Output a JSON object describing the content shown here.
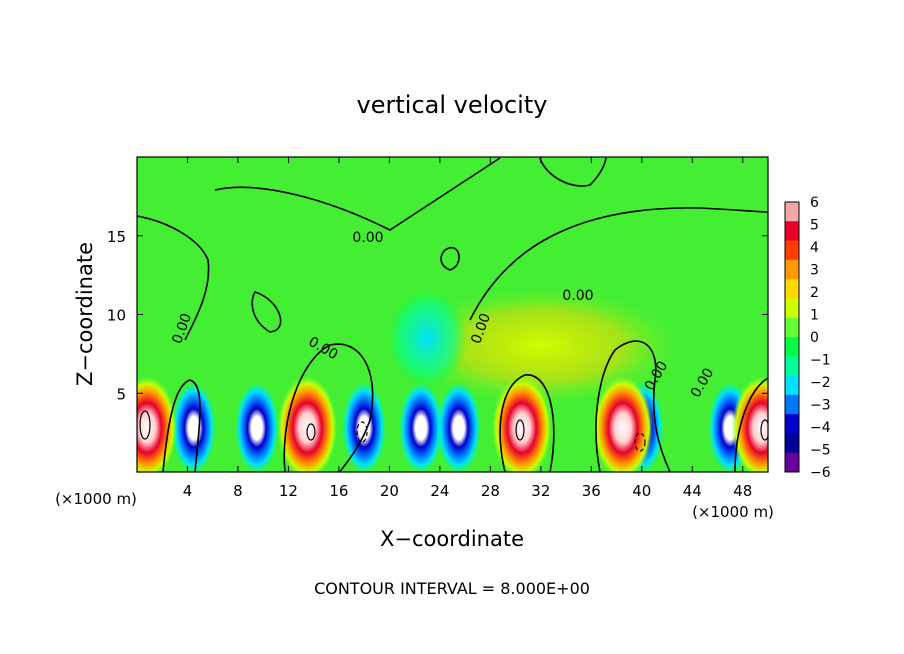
{
  "chart_data": {
    "type": "heatmap",
    "title": "vertical velocity",
    "xlabel": "X−coordinate",
    "ylabel": "Z−coordinate",
    "x_unit_label": "(×1000 m)",
    "x_ticks": [
      "4",
      "8",
      "12",
      "16",
      "20",
      "24",
      "28",
      "32",
      "36",
      "40",
      "44",
      "48"
    ],
    "x_tick_values": [
      4,
      8,
      12,
      16,
      20,
      24,
      28,
      32,
      36,
      40,
      44,
      48
    ],
    "y_ticks": [
      "5",
      "10",
      "15"
    ],
    "y_tick_values": [
      5,
      10,
      15
    ],
    "xlim": [
      0,
      50
    ],
    "ylim": [
      0,
      20
    ],
    "colorbar": {
      "labels": [
        "6",
        "5",
        "4",
        "3",
        "2",
        "1",
        "0",
        "−1",
        "−2",
        "−3",
        "−4",
        "−5",
        "−6"
      ],
      "range": [
        -6,
        6
      ],
      "colors": [
        "#f4a7a7",
        "#e8002a",
        "#ff3c00",
        "#ff9900",
        "#ffd800",
        "#ccff00",
        "#66ff33",
        "#00ff44",
        "#00ff99",
        "#00e0ff",
        "#0077ff",
        "#0000cc",
        "#000099",
        "#6a00a0"
      ]
    },
    "contour_labels": [
      "0.00",
      "0.00",
      "0.00",
      "0.00",
      "0.00",
      "0.00",
      "0.00"
    ],
    "footer": "CONTOUR INTERVAL = 8.000E+00",
    "updrafts_x": [
      0.8,
      13.5,
      30.5,
      38.5,
      49.5
    ],
    "downdrafts_x": [
      4.5,
      9.5,
      18,
      22.5,
      25.5,
      40,
      47
    ]
  }
}
